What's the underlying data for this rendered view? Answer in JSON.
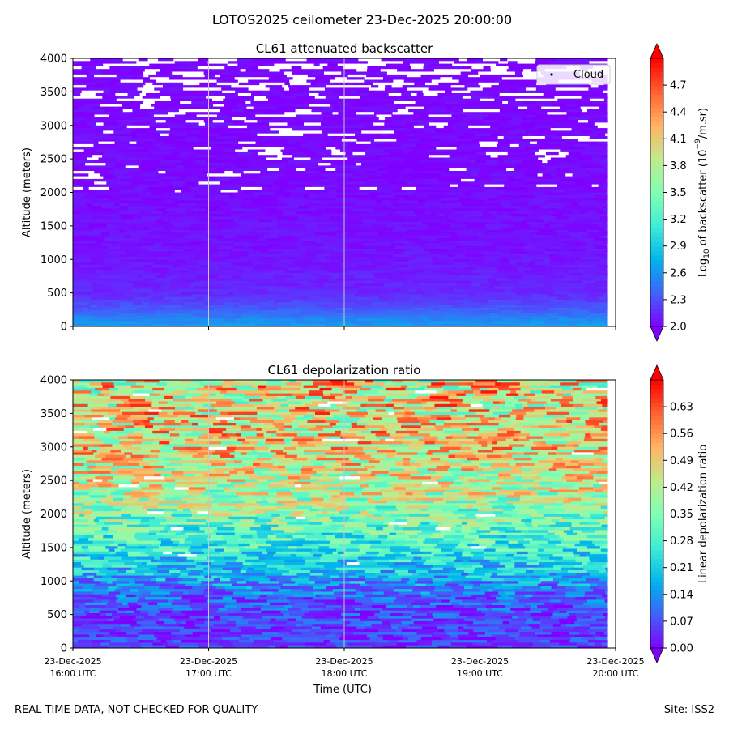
{
  "figure_title": "LOTOS2025 ceilometer 23-Dec-2025 20:00:00",
  "footer": {
    "note": "REAL TIME DATA, NOT CHECKED FOR QUALITY",
    "site": "Site: ISS2"
  },
  "colors": {
    "rainbow": [
      "#8000ff",
      "#4062fa",
      "#00b5eb",
      "#40ecd4",
      "#80ffb4",
      "#c0eb8d",
      "#ffb462",
      "#ff6232",
      "#ff0000"
    ],
    "cloud_marker": "#000000",
    "gridline": "#c8c8c8"
  },
  "chart_data": [
    {
      "type": "heatmap",
      "title": "CL61 attenuated backscatter",
      "xlabel": "",
      "ylabel": "Altitude (meters)",
      "ylim": [
        0,
        4000
      ],
      "yticks": [
        "0",
        "500",
        "1000",
        "1500",
        "2000",
        "2500",
        "3000",
        "3500",
        "4000"
      ],
      "ytick_values": [
        0,
        500,
        1000,
        1500,
        2000,
        2500,
        3000,
        3500,
        4000
      ],
      "xlim_hours": [
        16,
        20
      ],
      "xtick_hours": [
        16,
        17,
        18,
        19,
        20
      ],
      "xtick_labels": [],
      "grid": "vertical",
      "colorbar": {
        "label_prefix": "Log",
        "label_sub": "10",
        "label_mid": " of backscatter (10",
        "label_sup": "−9",
        "label_suffix": "/m.sr)",
        "vmin": 2.0,
        "vmax": 5.0,
        "ticks": [
          "2.0",
          "2.3",
          "2.6",
          "2.9",
          "3.2",
          "3.5",
          "3.8",
          "4.1",
          "4.4",
          "4.7"
        ],
        "tick_values": [
          2.0,
          2.3,
          2.6,
          2.9,
          3.2,
          3.5,
          3.8,
          4.1,
          4.4,
          4.7
        ],
        "extend": "both"
      },
      "legend": {
        "entries": [
          "Cloud"
        ],
        "position": "upper-right"
      },
      "field_profile": [
        {
          "altitude": 0,
          "value": 2.65
        },
        {
          "altitude": 100,
          "value": 2.55
        },
        {
          "altitude": 250,
          "value": 2.35
        },
        {
          "altitude": 500,
          "value": 2.15
        },
        {
          "altitude": 1000,
          "value": 2.08
        },
        {
          "altitude": 2000,
          "value": 2.04
        },
        {
          "altitude": 4000,
          "value": 2.02
        }
      ],
      "missing_above_altitude": 2000
    },
    {
      "type": "heatmap",
      "title": "CL61 depolarization ratio",
      "xlabel": "Time (UTC)",
      "ylabel": "Altitude (meters)",
      "ylim": [
        0,
        4000
      ],
      "yticks": [
        "0",
        "500",
        "1000",
        "1500",
        "2000",
        "2500",
        "3000",
        "3500",
        "4000"
      ],
      "ytick_values": [
        0,
        500,
        1000,
        1500,
        2000,
        2500,
        3000,
        3500,
        4000
      ],
      "xlim_hours": [
        16,
        20
      ],
      "xtick_hours": [
        16,
        17,
        18,
        19,
        20
      ],
      "xtick_labels": [
        [
          "23-Dec-2025",
          "16:00 UTC"
        ],
        [
          "23-Dec-2025",
          "17:00 UTC"
        ],
        [
          "23-Dec-2025",
          "18:00 UTC"
        ],
        [
          "23-Dec-2025",
          "19:00 UTC"
        ],
        [
          "23-Dec-2025",
          "20:00 UTC"
        ]
      ],
      "grid": "vertical",
      "colorbar": {
        "label": "Linear depolarization ratio",
        "vmin": 0.0,
        "vmax": 0.7,
        "ticks": [
          "0.00",
          "0.07",
          "0.14",
          "0.21",
          "0.28",
          "0.35",
          "0.42",
          "0.49",
          "0.56",
          "0.63"
        ],
        "tick_values": [
          0.0,
          0.07,
          0.14,
          0.21,
          0.28,
          0.35,
          0.42,
          0.49,
          0.56,
          0.63
        ],
        "extend": "both"
      },
      "field_profile": [
        {
          "altitude": 0,
          "value": 0.05
        },
        {
          "altitude": 500,
          "value": 0.06
        },
        {
          "altitude": 800,
          "value": 0.1
        },
        {
          "altitude": 1200,
          "value": 0.2
        },
        {
          "altitude": 1700,
          "value": 0.3
        },
        {
          "altitude": 2300,
          "value": 0.42
        },
        {
          "altitude": 3000,
          "value": 0.48
        },
        {
          "altitude": 4000,
          "value": 0.47
        }
      ]
    }
  ]
}
